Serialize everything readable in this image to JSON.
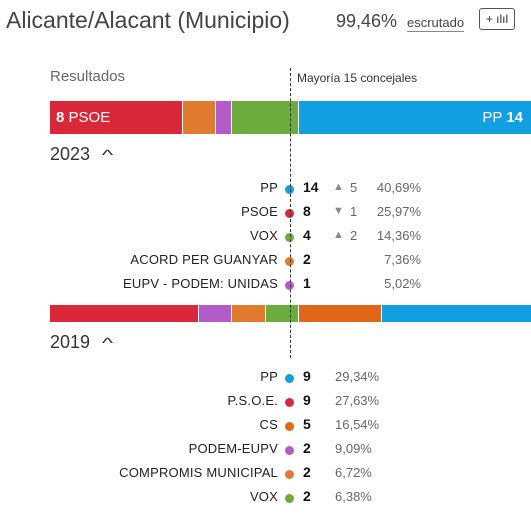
{
  "header": {
    "title": "Alicante/Alacant (Municipio)",
    "scrutiny_percent": "99,46%",
    "scrutiny_label": "escrutado",
    "toggle_icon": "+ ılıl"
  },
  "results_label": "Resultados",
  "majority_label": "Mayoría 15 concejales",
  "majority_seats": 15,
  "total_seats": 29,
  "bar2023": [
    {
      "party": "PSOE",
      "seats": 8,
      "color": "#d9283a"
    },
    {
      "party": "ACORD PER GUANYAR",
      "seats": 2,
      "color": "#e07a2e"
    },
    {
      "party": "EUPV - PODEM: UNIDAS",
      "seats": 1,
      "color": "#b35cc8"
    },
    {
      "party": "VOX",
      "seats": 4,
      "color": "#6aad3d"
    },
    {
      "party": "PP",
      "seats": 14,
      "color": "#109fe0"
    }
  ],
  "bar2023_labels": {
    "left_seats": "8",
    "left_party": "PSOE",
    "right_party": "PP",
    "right_seats": "14"
  },
  "bar2019": [
    {
      "party": "P.S.O.E.",
      "seats": 9,
      "color": "#d9283a"
    },
    {
      "party": "PODEM-EUPV",
      "seats": 2,
      "color": "#b35cc8"
    },
    {
      "party": "COMPROMIS MUNICIPAL",
      "seats": 2,
      "color": "#e07a2e"
    },
    {
      "party": "VOX",
      "seats": 2,
      "color": "#6aad3d"
    },
    {
      "party": "CS",
      "seats": 5,
      "color": "#e0661a"
    },
    {
      "party": "PP",
      "seats": 9,
      "color": "#109fe0"
    }
  ],
  "year2023": "2023",
  "year2019": "2019",
  "results2023": [
    {
      "party": "PP",
      "color": "#109fe0",
      "seats": "14",
      "trend": "up",
      "delta": "5",
      "votes": "40,69%"
    },
    {
      "party": "PSOE",
      "color": "#d9283a",
      "seats": "8",
      "trend": "down",
      "delta": "1",
      "votes": "25,97%"
    },
    {
      "party": "VOX",
      "color": "#6aad3d",
      "seats": "4",
      "trend": "up",
      "delta": "2",
      "votes": "14,36%"
    },
    {
      "party": "ACORD PER GUANYAR",
      "color": "#e07a2e",
      "seats": "2",
      "trend": "",
      "delta": "",
      "votes": "7,36%"
    },
    {
      "party": "EUPV - PODEM: UNIDAS",
      "color": "#b35cc8",
      "seats": "1",
      "trend": "",
      "delta": "",
      "votes": "5,02%"
    }
  ],
  "results2019": [
    {
      "party": "PP",
      "color": "#109fe0",
      "seats": "9",
      "votes": "29,34%"
    },
    {
      "party": "P.S.O.E.",
      "color": "#d9283a",
      "seats": "9",
      "votes": "27,63%"
    },
    {
      "party": "CS",
      "color": "#e0661a",
      "seats": "5",
      "votes": "16,54%"
    },
    {
      "party": "PODEM-EUPV",
      "color": "#b35cc8",
      "seats": "2",
      "votes": "9,09%"
    },
    {
      "party": "COMPROMIS MUNICIPAL",
      "color": "#e07a2e",
      "seats": "2",
      "votes": "6,72%"
    },
    {
      "party": "VOX",
      "color": "#6aad3d",
      "seats": "2",
      "votes": "6,38%"
    }
  ]
}
